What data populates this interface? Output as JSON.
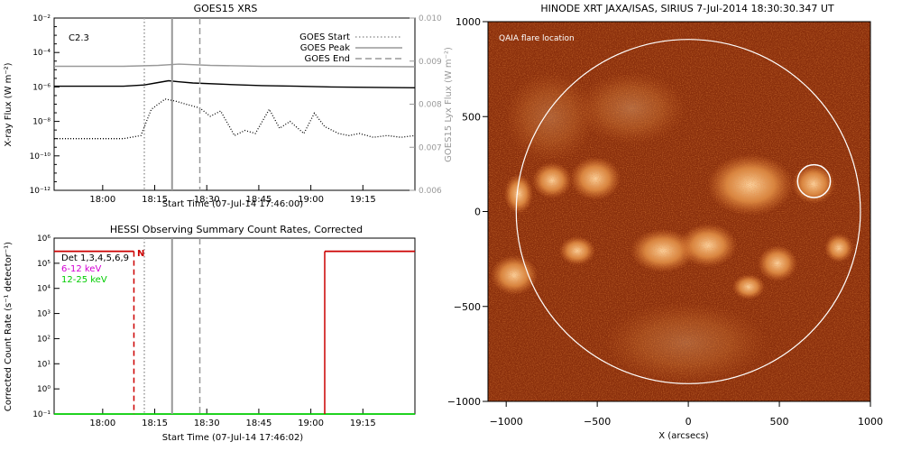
{
  "goes_panel": {
    "title": "GOES15 XRS",
    "flare_class": "C2.3",
    "xlabel": "Start Time (07-Jul-14 17:46:00)",
    "ylabel": "X-ray Flux (W m⁻²)",
    "ylabel_right": "GOES15 Lyx Flux (W m⁻²)",
    "legend": [
      {
        "label": "GOES Start",
        "style": "dotted"
      },
      {
        "label": "GOES Peak",
        "style": "solid"
      },
      {
        "label": "GOES End",
        "style": "dashed"
      }
    ]
  },
  "hessi_panel": {
    "title": "HESSI Observing Summary Count Rates, Corrected",
    "xlabel": "Start Time (07-Jul-14 17:46:02)",
    "ylabel": "Corrected Count Rate (s⁻¹ detector⁻¹)",
    "marker_N": "N",
    "legend": [
      {
        "label": "Det 1,3,4,5,6,9",
        "color": "#000000"
      },
      {
        "label": "6-12 keV",
        "color": "#d400d4"
      },
      {
        "label": "12-25 keV",
        "color": "#00cc00"
      }
    ]
  },
  "xrt_panel": {
    "title": "HINODE XRT JAXA/ISAS, SIRIUS  7-Jul-2014 18:30:30.347 UT",
    "annotation": "QAIA flare location",
    "xlabel": "X (arcsecs)"
  },
  "colors": {
    "red": "#cc0000",
    "gray": "#999999",
    "sun_bg": "#8a2f0c",
    "sun_bright": "#f7a85a"
  },
  "chart_data": [
    {
      "type": "line",
      "title": "GOES15 XRS",
      "xlabel": "Start Time (07-Jul-14 17:46:00)",
      "ylabel": "X-ray Flux (W m⁻²)",
      "y_scale": "log",
      "ylim": [
        1e-12,
        0.01
      ],
      "y_ticks": [
        "10⁻¹²",
        "10⁻¹⁰",
        "10⁻⁸",
        "10⁻⁶",
        "10⁻⁴",
        "10⁻²"
      ],
      "y2_ticks": [
        "0.006",
        "0.007",
        "0.008",
        "0.009",
        "0.010"
      ],
      "y2lim": [
        0.006,
        0.01
      ],
      "x_ticks": [
        "18:00",
        "18:15",
        "18:30",
        "18:45",
        "19:00",
        "19:15"
      ],
      "x_tick_minutes": [
        14,
        29,
        44,
        59,
        74,
        89
      ],
      "xlim_minutes": [
        0,
        104
      ],
      "series": [
        {
          "name": "",
          "color": "#000000",
          "style": "solid",
          "x": [
            0,
            20,
            26,
            30,
            33,
            36,
            40,
            50,
            60,
            70,
            80,
            90,
            104
          ],
          "y": [
            1.1e-06,
            1.1e-06,
            1.3e-06,
            1.8e-06,
            2.3e-06,
            2e-06,
            1.7e-06,
            1.4e-06,
            1.2e-06,
            1.1e-06,
            1e-06,
            9.5e-07,
            9e-07
          ]
        },
        {
          "name": "",
          "color": "#000000",
          "style": "dotted",
          "x": [
            0,
            10,
            20,
            25,
            28,
            32,
            35,
            38,
            42,
            45,
            48,
            52,
            55,
            58,
            62,
            65,
            68,
            72,
            75,
            78,
            82,
            85,
            88,
            92,
            96,
            100,
            104
          ],
          "y": [
            1e-09,
            1e-09,
            1e-09,
            1.5e-09,
            5e-08,
            2e-07,
            1.5e-07,
            1e-07,
            6e-08,
            2e-08,
            4e-08,
            1.5e-09,
            3e-09,
            2e-09,
            5e-08,
            4e-09,
            1e-08,
            2e-09,
            3e-08,
            5e-09,
            2e-09,
            1.5e-09,
            2e-09,
            1.2e-09,
            1.5e-09,
            1.2e-09,
            1.5e-09
          ]
        },
        {
          "name": "",
          "color": "#999999",
          "style": "solid",
          "axis": "right",
          "x": [
            0,
            20,
            30,
            36,
            45,
            60,
            80,
            104
          ],
          "y": [
            0.00888,
            0.00888,
            0.0089,
            0.00893,
            0.0089,
            0.00888,
            0.00888,
            0.00887
          ]
        }
      ],
      "markers_minutes": {
        "start": 26,
        "peak": 34,
        "end": 42
      }
    },
    {
      "type": "line",
      "title": "HESSI Observing Summary Count Rates, Corrected",
      "xlabel": "Start Time (07-Jul-14 17:46:02)",
      "ylabel": "Corrected Count Rate (s⁻¹ detector⁻¹)",
      "y_scale": "log",
      "ylim": [
        0.1,
        1000000
      ],
      "y_ticks": [
        "10⁻¹",
        "10⁰",
        "10¹",
        "10²",
        "10³",
        "10⁴",
        "10⁵",
        "10⁶"
      ],
      "x_ticks": [
        "18:00",
        "18:15",
        "18:30",
        "18:45",
        "19:00",
        "19:15"
      ],
      "x_tick_minutes": [
        14,
        29,
        44,
        59,
        74,
        89
      ],
      "xlim_minutes": [
        0,
        104
      ],
      "series": [
        {
          "name": "",
          "color": "#cc0000",
          "style": "solid",
          "x": [
            0,
            23
          ],
          "y": [
            300000,
            300000
          ]
        },
        {
          "name": "",
          "color": "#cc0000",
          "style": "solid",
          "x": [
            78,
            104
          ],
          "y": [
            300000,
            300000
          ]
        },
        {
          "name": "12-25 keV",
          "color": "#00cc00",
          "style": "solid",
          "x": [
            0,
            104
          ],
          "y": [
            0.1,
            0.1
          ]
        }
      ],
      "markers_minutes": {
        "start": 26,
        "peak": 34,
        "end": 42,
        "saa_dashed": 23,
        "saa_solid": 78
      }
    },
    {
      "type": "heatmap",
      "title": "HINODE XRT JAXA/ISAS, SIRIUS  7-Jul-2014 18:30:30.347 UT",
      "xlabel": "X (arcsecs)",
      "xlim": [
        -1100,
        1000
      ],
      "ylim": [
        -1000,
        1000
      ],
      "x_ticks": [
        "−1000",
        "−500",
        "0",
        "500",
        "1000"
      ],
      "x_tick_values": [
        -1000,
        -500,
        0,
        500,
        1000
      ],
      "y_ticks": [
        "−1000",
        "−500",
        "0",
        "500",
        "1000"
      ],
      "y_tick_values": [
        -1000,
        -500,
        0,
        500,
        1000
      ],
      "solar_radius": 945,
      "flare_location": [
        690,
        160
      ],
      "flare_circle_radius": 90
    }
  ]
}
